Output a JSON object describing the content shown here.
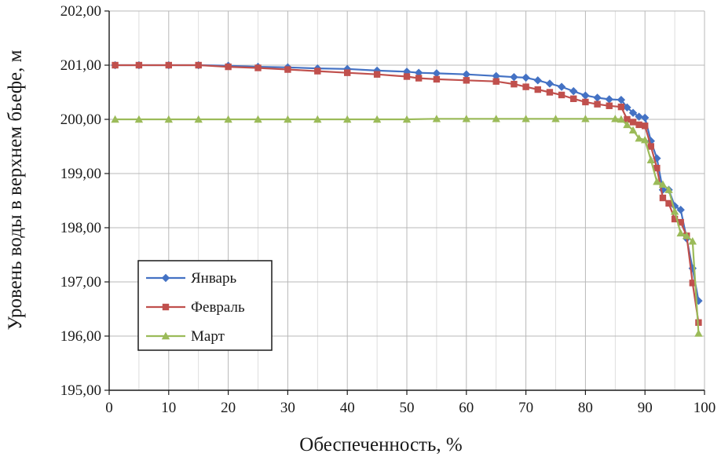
{
  "chart_data": {
    "type": "line",
    "title": "",
    "xlabel": "Обеспеченность, %",
    "ylabel": "Уровень воды в верхнем бьефе, м",
    "xlim": [
      0,
      100
    ],
    "ylim": [
      195,
      202
    ],
    "x_ticks": [
      0,
      10,
      20,
      30,
      40,
      50,
      60,
      70,
      80,
      90,
      100
    ],
    "x_tick_labels": [
      "0",
      "10",
      "20",
      "30",
      "40",
      "50",
      "60",
      "70",
      "80",
      "90",
      "100"
    ],
    "y_ticks": [
      195,
      196,
      197,
      198,
      199,
      200,
      201,
      202
    ],
    "y_tick_labels": [
      "195,00",
      "196,00",
      "197,00",
      "198,00",
      "199,00",
      "200,00",
      "201,00",
      "202,00"
    ],
    "grid": true,
    "legend_position": "bottom-left",
    "series": [
      {
        "name": "Январь",
        "color": "#4472C4",
        "marker": "diamond",
        "x": [
          1,
          5,
          10,
          15,
          20,
          25,
          30,
          35,
          40,
          45,
          50,
          52,
          55,
          60,
          65,
          68,
          70,
          72,
          74,
          76,
          78,
          80,
          82,
          84,
          86,
          87,
          88,
          89,
          90,
          91,
          92,
          93,
          94,
          95,
          96,
          97,
          98,
          99
        ],
        "y": [
          201.0,
          201.0,
          201.0,
          201.0,
          200.99,
          200.97,
          200.96,
          200.94,
          200.93,
          200.9,
          200.88,
          200.86,
          200.85,
          200.83,
          200.8,
          200.78,
          200.77,
          200.72,
          200.66,
          200.6,
          200.52,
          200.44,
          200.4,
          200.37,
          200.36,
          200.22,
          200.12,
          200.05,
          200.03,
          199.6,
          199.28,
          198.7,
          198.7,
          198.4,
          198.33,
          197.8,
          197.25,
          196.65
        ]
      },
      {
        "name": "Февраль",
        "color": "#C0504D",
        "marker": "square",
        "x": [
          1,
          5,
          10,
          15,
          20,
          25,
          30,
          35,
          40,
          45,
          50,
          52,
          55,
          60,
          65,
          68,
          70,
          72,
          74,
          76,
          78,
          80,
          82,
          84,
          86,
          87,
          88,
          89,
          90,
          91,
          92,
          93,
          94,
          95,
          96,
          97,
          98,
          99
        ],
        "y": [
          201.0,
          201.0,
          201.0,
          201.0,
          200.97,
          200.95,
          200.92,
          200.89,
          200.86,
          200.83,
          200.79,
          200.76,
          200.74,
          200.72,
          200.7,
          200.65,
          200.6,
          200.55,
          200.5,
          200.45,
          200.38,
          200.32,
          200.28,
          200.25,
          200.23,
          200.0,
          199.95,
          199.9,
          199.88,
          199.5,
          199.1,
          198.55,
          198.45,
          198.16,
          198.1,
          197.85,
          196.98,
          196.25
        ]
      },
      {
        "name": "Март",
        "color": "#9BBB59",
        "marker": "triangle",
        "x": [
          1,
          5,
          10,
          15,
          20,
          25,
          30,
          35,
          40,
          45,
          50,
          55,
          60,
          65,
          70,
          75,
          80,
          85,
          86,
          87,
          88,
          89,
          90,
          91,
          92,
          93,
          94,
          95,
          96,
          97,
          98,
          99
        ],
        "y": [
          200.0,
          200.0,
          200.0,
          200.0,
          200.0,
          200.0,
          200.0,
          200.0,
          200.0,
          200.0,
          200.0,
          200.01,
          200.01,
          200.01,
          200.01,
          200.01,
          200.01,
          200.01,
          200.0,
          199.9,
          199.8,
          199.65,
          199.62,
          199.25,
          198.85,
          198.8,
          198.7,
          198.3,
          197.9,
          197.85,
          197.75,
          196.05
        ]
      }
    ]
  }
}
